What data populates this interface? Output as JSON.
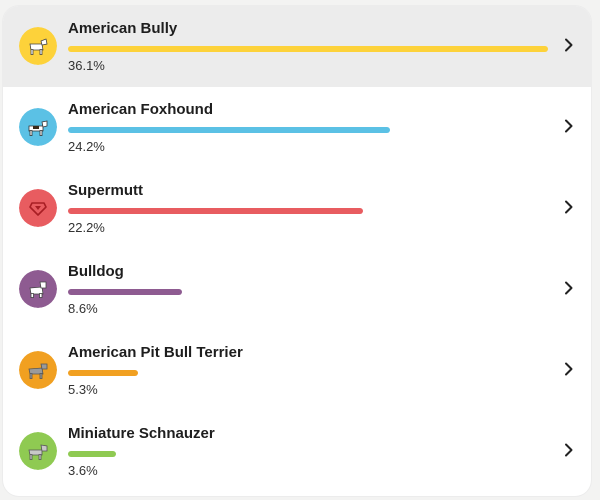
{
  "breeds": [
    {
      "name": "American Bully",
      "percent_label": "36.1%",
      "percent": 36.1,
      "color": "#fdd23a",
      "icon": "dog-icon"
    },
    {
      "name": "American Foxhound",
      "percent_label": "24.2%",
      "percent": 24.2,
      "color": "#5bc1e5",
      "icon": "dog-icon"
    },
    {
      "name": "Supermutt",
      "percent_label": "22.2%",
      "percent": 22.2,
      "color": "#e85c60",
      "icon": "supermutt-badge-icon"
    },
    {
      "name": "Bulldog",
      "percent_label": "8.6%",
      "percent": 8.6,
      "color": "#8e5b91",
      "icon": "dog-icon"
    },
    {
      "name": "American Pit Bull Terrier",
      "percent_label": "5.3%",
      "percent": 5.3,
      "color": "#f1a021",
      "icon": "dog-icon"
    },
    {
      "name": "Miniature Schnauzer",
      "percent_label": "3.6%",
      "percent": 3.6,
      "color": "#8fca52",
      "icon": "dog-icon"
    }
  ],
  "selected_index": 0,
  "chevron_icon": "chevron-right-icon"
}
